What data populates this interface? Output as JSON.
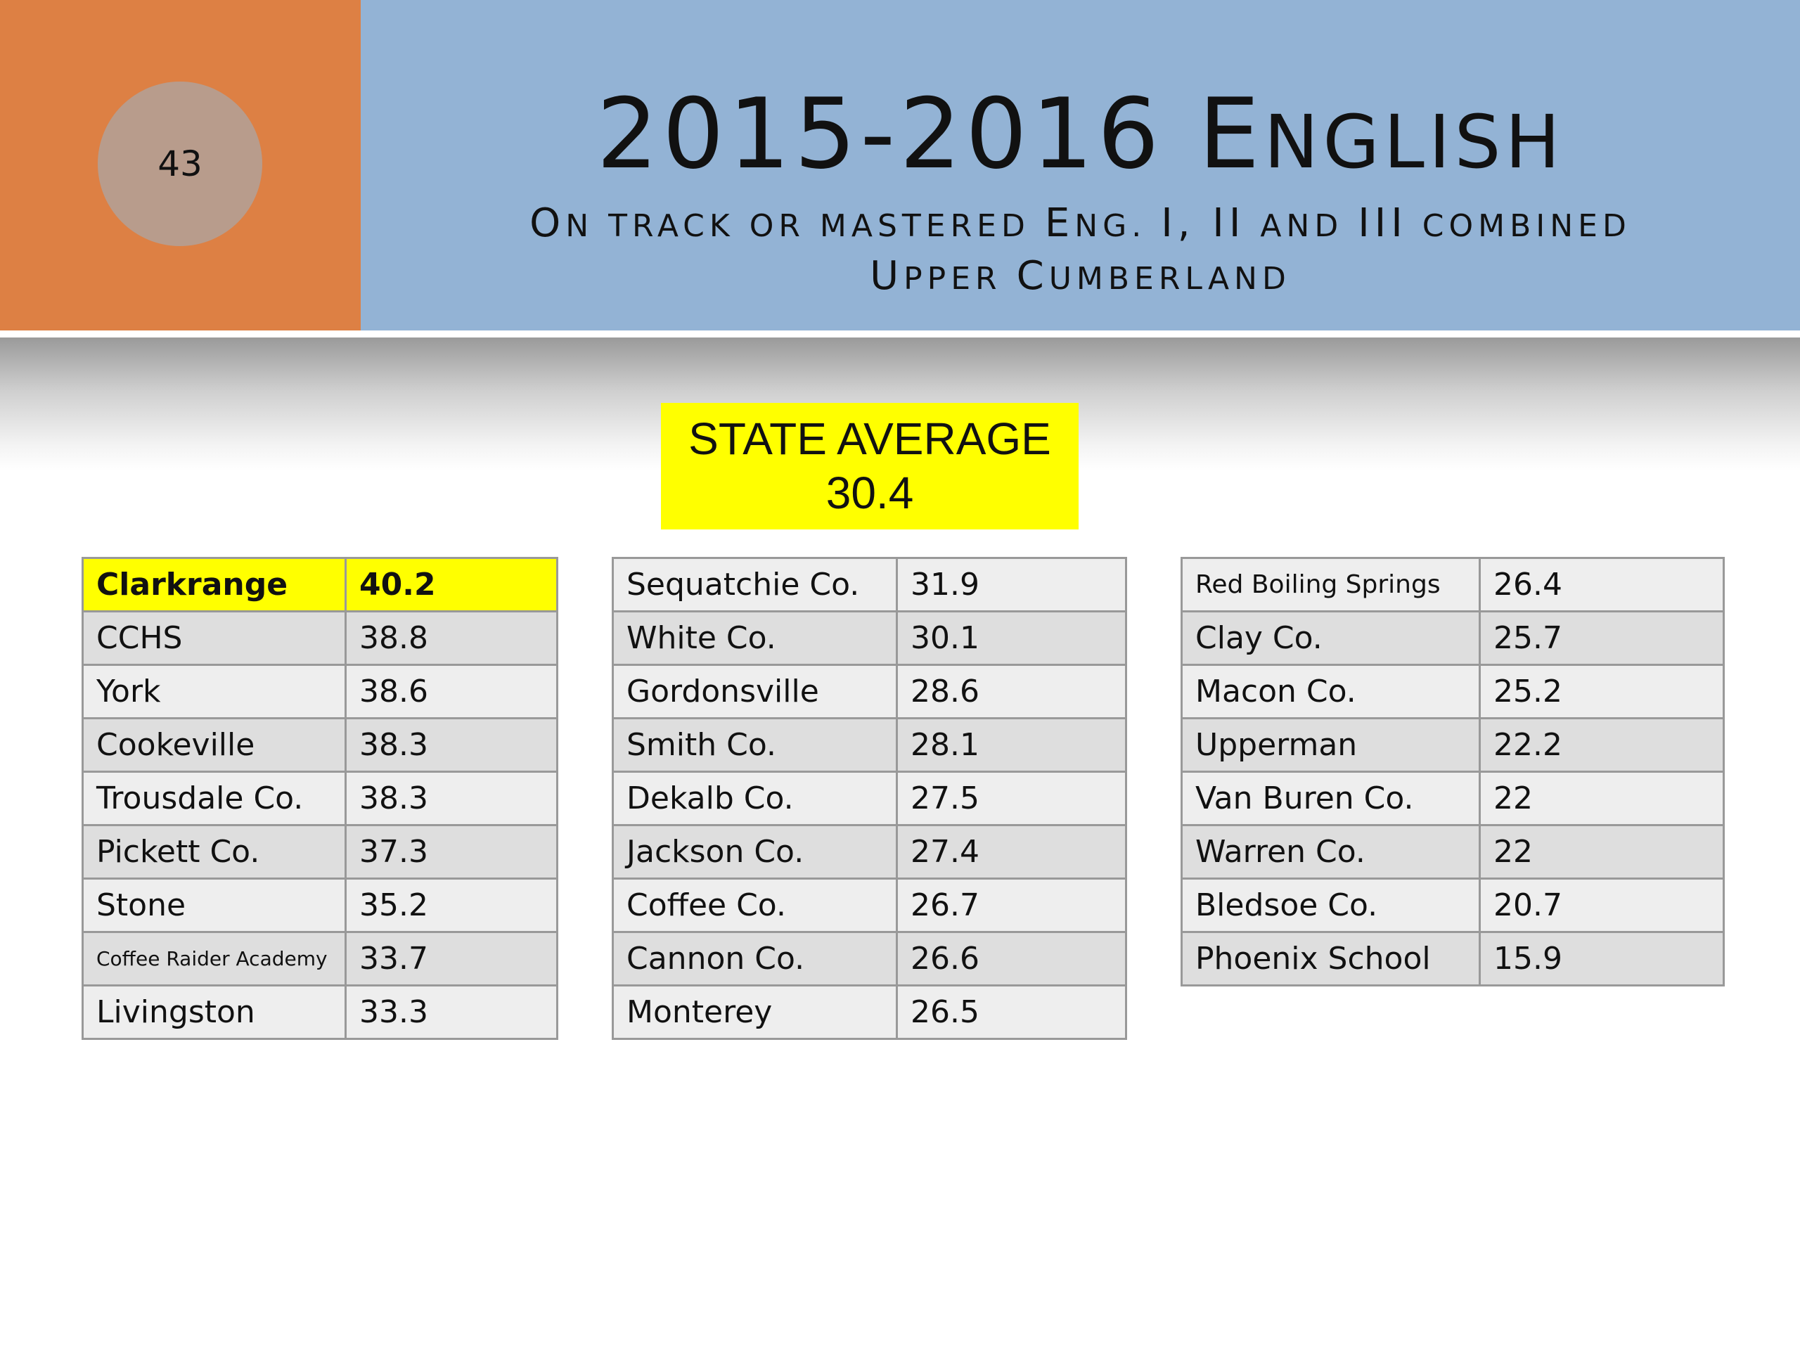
{
  "slide": {
    "number": "43",
    "title_main": "2015-2016 E",
    "title_rest": "NGLISH",
    "subtitle_line1": [
      {
        "t": "O",
        "big": true
      },
      {
        "t": "N TRACK OR MASTERED ",
        "big": false
      },
      {
        "t": "E",
        "big": true
      },
      {
        "t": "NG. ",
        "big": false
      },
      {
        "t": "I, II",
        "big": true
      },
      {
        "t": " AND ",
        "big": false
      },
      {
        "t": "III",
        "big": true
      },
      {
        "t": " COMBINED",
        "big": false
      }
    ],
    "subtitle_line2": [
      {
        "t": "U",
        "big": true
      },
      {
        "t": "PPER ",
        "big": false
      },
      {
        "t": "C",
        "big": true
      },
      {
        "t": "UMBERLAND",
        "big": false
      }
    ]
  },
  "state_average": {
    "label": "STATE AVERAGE",
    "value": "30.4"
  },
  "tables": [
    [
      {
        "name": "Clarkrange",
        "value": "40.2",
        "highlight": true
      },
      {
        "name": "CCHS",
        "value": "38.8"
      },
      {
        "name": "York",
        "value": "38.6"
      },
      {
        "name": "Cookeville",
        "value": "38.3"
      },
      {
        "name": "Trousdale Co.",
        "value": "38.3"
      },
      {
        "name": "Pickett Co.",
        "value": "37.3"
      },
      {
        "name": "Stone",
        "value": "35.2"
      },
      {
        "name": "Coffee Raider Academy",
        "value": "33.7",
        "small": true
      },
      {
        "name": "Livingston",
        "value": "33.3"
      }
    ],
    [
      {
        "name": "Sequatchie Co.",
        "value": "31.9"
      },
      {
        "name": "White Co.",
        "value": "30.1"
      },
      {
        "name": "Gordonsville",
        "value": "28.6"
      },
      {
        "name": "Smith Co.",
        "value": "28.1"
      },
      {
        "name": "Dekalb Co.",
        "value": "27.5"
      },
      {
        "name": "Jackson Co.",
        "value": "27.4"
      },
      {
        "name": "Coffee Co.",
        "value": "26.7"
      },
      {
        "name": "Cannon Co.",
        "value": "26.6"
      },
      {
        "name": "Monterey",
        "value": "26.5"
      }
    ],
    [
      {
        "name": "Red Boiling Springs",
        "value": "26.4",
        "medium": true
      },
      {
        "name": "Clay Co.",
        "value": "25.7"
      },
      {
        "name": "Macon Co.",
        "value": "25.2"
      },
      {
        "name": "Upperman",
        "value": "22.2"
      },
      {
        "name": "Van Buren Co.",
        "value": "22"
      },
      {
        "name": "Warren Co.",
        "value": "22"
      },
      {
        "name": "Bledsoe Co.",
        "value": "20.7"
      },
      {
        "name": "Phoenix School",
        "value": "15.9"
      }
    ]
  ]
}
